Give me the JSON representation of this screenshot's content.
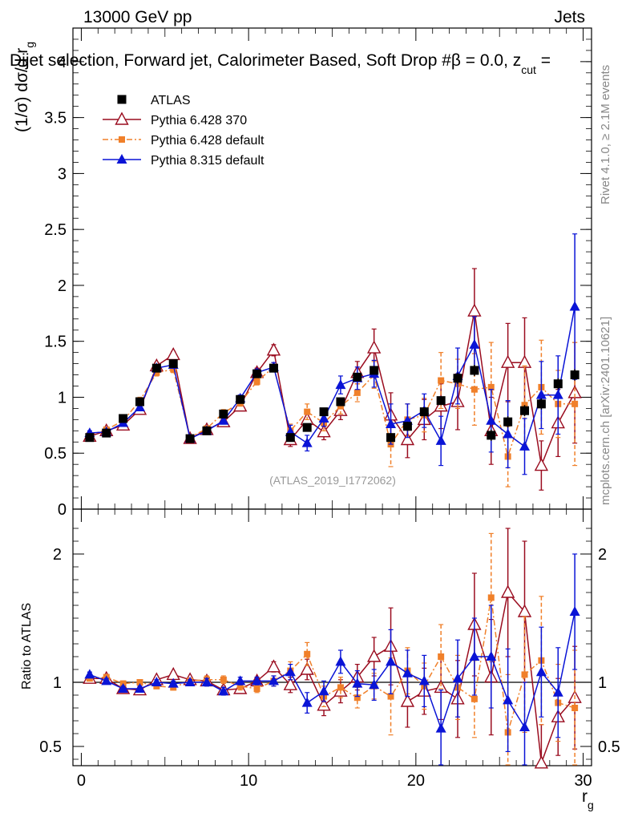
{
  "header": {
    "beam": "13000 GeV pp",
    "category": "Jets",
    "plot_title": "Dijet selection, Forward jet, Calorimeter Based, Soft Drop #β = 0.0, z",
    "title_sub": "cut",
    "title_tail": " =",
    "side_rivet": "Rivet 4.1.0, ≥ 2.1M events",
    "side_mcplots": "mcplots.cern.ch [arXiv:2401.10621]",
    "analysis": "(ATLAS_2019_I1772062)"
  },
  "chart_data": [
    {
      "type": "scatter",
      "panel": "main",
      "ylabel": "(1/σ) dσ/d r",
      "ylabel_sub": "g",
      "xlim": [
        -0.5,
        30.5
      ],
      "ylim": [
        0,
        4.3
      ],
      "x_ticks": [
        0,
        10,
        20,
        30
      ],
      "y_ticks": [
        0,
        0.5,
        1,
        1.5,
        2,
        2.5,
        3,
        3.5,
        4
      ],
      "y_tick_labels": [
        "0",
        "0.5",
        "1",
        "1.5",
        "2",
        "2.5",
        "3",
        "3.5",
        "4"
      ],
      "legend": [
        "ATLAS",
        "Pythia 6.428 370",
        "Pythia 6.428 default",
        "Pythia 8.315 default"
      ],
      "x": [
        0.5,
        1.5,
        2.5,
        3.5,
        4.5,
        5.5,
        6.5,
        7.5,
        8.5,
        9.5,
        10.5,
        11.5,
        12.5,
        13.5,
        14.5,
        15.5,
        16.5,
        17.5,
        18.5,
        19.5,
        20.5,
        21.5,
        22.5,
        23.5,
        24.5,
        25.5,
        26.5,
        27.5,
        28.5,
        29.5
      ],
      "series": [
        {
          "name": "ATLAS",
          "color": "#000000",
          "marker": "square",
          "values": [
            0.64,
            0.68,
            0.81,
            0.96,
            1.26,
            1.3,
            0.63,
            0.7,
            0.85,
            0.98,
            1.21,
            1.26,
            0.64,
            0.73,
            0.87,
            0.96,
            1.18,
            1.24,
            0.64,
            0.74,
            0.87,
            0.97,
            1.17,
            1.24,
            0.66,
            0.78,
            0.88,
            0.94,
            1.12,
            1.2
          ],
          "errors": [
            0.02,
            0.02,
            0.02,
            0.02,
            0.02,
            0.02,
            0.02,
            0.02,
            0.02,
            0.02,
            0.02,
            0.02,
            0.03,
            0.03,
            0.03,
            0.03,
            0.03,
            0.03,
            0.04,
            0.04,
            0.04,
            0.04,
            0.05,
            0.05,
            0.05,
            0.05,
            0.05,
            0.05,
            0.05,
            0.05
          ]
        },
        {
          "name": "Pythia 6.428 370",
          "color": "#9a0c1f",
          "marker": "triangle-open",
          "line": "solid",
          "values": [
            0.65,
            0.7,
            0.75,
            0.89,
            1.28,
            1.38,
            0.63,
            0.71,
            0.78,
            0.92,
            1.22,
            1.42,
            0.62,
            0.8,
            0.69,
            0.88,
            1.22,
            1.44,
            0.84,
            0.62,
            0.8,
            0.92,
            0.96,
            1.77,
            0.7,
            1.31,
            1.31,
            0.39,
            0.77,
            1.04
          ],
          "errors": [
            0.02,
            0.02,
            0.02,
            0.03,
            0.03,
            0.03,
            0.02,
            0.02,
            0.03,
            0.03,
            0.04,
            0.05,
            0.06,
            0.06,
            0.07,
            0.08,
            0.1,
            0.17,
            0.2,
            0.16,
            0.18,
            0.2,
            0.25,
            0.38,
            0.3,
            0.35,
            0.4,
            0.22,
            0.3,
            0.45
          ]
        },
        {
          "name": "Pythia 6.428 default",
          "color": "#f0802a",
          "marker": "square-small",
          "line": "dashdot",
          "values": [
            0.66,
            0.71,
            0.79,
            0.97,
            1.22,
            1.25,
            0.64,
            0.72,
            0.86,
            0.95,
            1.14,
            1.27,
            0.7,
            0.87,
            0.77,
            0.92,
            1.04,
            1.2,
            0.58,
            0.8,
            0.84,
            1.15,
            1.12,
            1.07,
            1.09,
            0.47,
            0.93,
            1.09,
            0.94,
            0.94
          ],
          "errors": [
            0.02,
            0.02,
            0.02,
            0.03,
            0.03,
            0.03,
            0.02,
            0.02,
            0.03,
            0.03,
            0.03,
            0.04,
            0.06,
            0.07,
            0.07,
            0.07,
            0.08,
            0.12,
            0.2,
            0.14,
            0.15,
            0.25,
            0.22,
            0.32,
            0.4,
            0.27,
            0.35,
            0.42,
            0.3,
            0.55
          ]
        },
        {
          "name": "Pythia 8.315 default",
          "color": "#0a14d6",
          "marker": "triangle",
          "line": "solid",
          "values": [
            0.68,
            0.69,
            0.77,
            0.91,
            1.26,
            1.29,
            0.63,
            0.7,
            0.79,
            0.99,
            1.22,
            1.27,
            0.69,
            0.59,
            0.81,
            1.11,
            1.17,
            1.21,
            0.76,
            0.79,
            0.88,
            0.61,
            1.19,
            1.47,
            0.79,
            0.67,
            0.56,
            1.02,
            1.02,
            1.81
          ],
          "errors": [
            0.02,
            0.02,
            0.02,
            0.03,
            0.03,
            0.03,
            0.02,
            0.02,
            0.03,
            0.03,
            0.03,
            0.04,
            0.06,
            0.07,
            0.07,
            0.08,
            0.1,
            0.12,
            0.18,
            0.15,
            0.15,
            0.22,
            0.25,
            0.25,
            0.28,
            0.3,
            0.25,
            0.3,
            0.35,
            0.65
          ]
        }
      ]
    },
    {
      "type": "scatter",
      "panel": "ratio",
      "ylabel": "Ratio to ATLAS",
      "xlabel": "r",
      "xlabel_sub": "g",
      "xlim": [
        -0.5,
        30.5
      ],
      "ylim": [
        0.35,
        2.35
      ],
      "x_ticks": [
        0,
        10,
        20,
        30
      ],
      "x_tick_labels": [
        "0",
        "10",
        "20",
        "30"
      ],
      "y_ticks": [
        0.5,
        1,
        2
      ],
      "y_tick_labels": [
        "0.5",
        "1",
        "2"
      ],
      "reference_line": 1,
      "x": [
        0.5,
        1.5,
        2.5,
        3.5,
        4.5,
        5.5,
        6.5,
        7.5,
        8.5,
        9.5,
        10.5,
        11.5,
        12.5,
        13.5,
        14.5,
        15.5,
        16.5,
        17.5,
        18.5,
        19.5,
        20.5,
        21.5,
        22.5,
        23.5,
        24.5,
        25.5,
        26.5,
        27.5,
        28.5,
        29.5
      ],
      "series": [
        {
          "name": "Pythia 6.428 370",
          "color": "#9a0c1f",
          "marker": "triangle-open",
          "line": "solid",
          "values": [
            1.03,
            1.03,
            0.95,
            0.94,
            1.02,
            1.06,
            1.02,
            1.01,
            0.94,
            0.95,
            1.01,
            1.12,
            0.98,
            1.1,
            0.82,
            0.93,
            1.04,
            1.2,
            1.28,
            0.85,
            0.93,
            0.96,
            0.87,
            1.45,
            1.04,
            1.7,
            1.55,
            0.37,
            0.73,
            0.88
          ],
          "errors": [
            0.02,
            0.02,
            0.02,
            0.02,
            0.02,
            0.02,
            0.02,
            0.03,
            0.03,
            0.03,
            0.03,
            0.04,
            0.06,
            0.08,
            0.08,
            0.09,
            0.1,
            0.15,
            0.3,
            0.2,
            0.18,
            0.25,
            0.3,
            0.4,
            0.45,
            0.5,
            0.55,
            0.3,
            0.3,
            0.4
          ]
        },
        {
          "name": "Pythia 6.428 default",
          "color": "#f0802a",
          "marker": "square-small",
          "line": "dashdot",
          "values": [
            1.03,
            1.04,
            0.99,
            1.0,
            0.97,
            0.96,
            1.01,
            1.02,
            1.02,
            0.97,
            0.95,
            1.01,
            1.09,
            1.22,
            0.89,
            0.96,
            0.88,
            0.97,
            0.89,
            1.09,
            0.97,
            1.2,
            0.96,
            0.87,
            1.66,
            0.61,
            1.06,
            1.17,
            0.84,
            0.8
          ],
          "errors": [
            0.02,
            0.02,
            0.02,
            0.02,
            0.02,
            0.02,
            0.02,
            0.03,
            0.03,
            0.03,
            0.03,
            0.04,
            0.07,
            0.09,
            0.08,
            0.08,
            0.08,
            0.1,
            0.3,
            0.18,
            0.18,
            0.25,
            0.25,
            0.3,
            0.5,
            0.45,
            0.45,
            0.5,
            0.3,
            0.45
          ]
        },
        {
          "name": "Pythia 8.315 default",
          "color": "#0a14d6",
          "marker": "triangle",
          "line": "solid",
          "values": [
            1.06,
            1.01,
            0.95,
            0.95,
            1.0,
            0.99,
            1.0,
            1.0,
            0.93,
            1.01,
            1.01,
            1.01,
            1.08,
            0.84,
            0.93,
            1.16,
            0.99,
            0.98,
            1.16,
            1.07,
            1.01,
            0.64,
            1.03,
            1.2,
            1.2,
            0.86,
            0.65,
            1.08,
            0.92,
            1.55
          ],
          "errors": [
            0.02,
            0.02,
            0.02,
            0.02,
            0.02,
            0.02,
            0.02,
            0.03,
            0.03,
            0.03,
            0.03,
            0.04,
            0.06,
            0.08,
            0.08,
            0.09,
            0.1,
            0.12,
            0.25,
            0.18,
            0.2,
            0.3,
            0.3,
            0.3,
            0.4,
            0.4,
            0.35,
            0.35,
            0.35,
            0.45
          ]
        }
      ]
    }
  ]
}
